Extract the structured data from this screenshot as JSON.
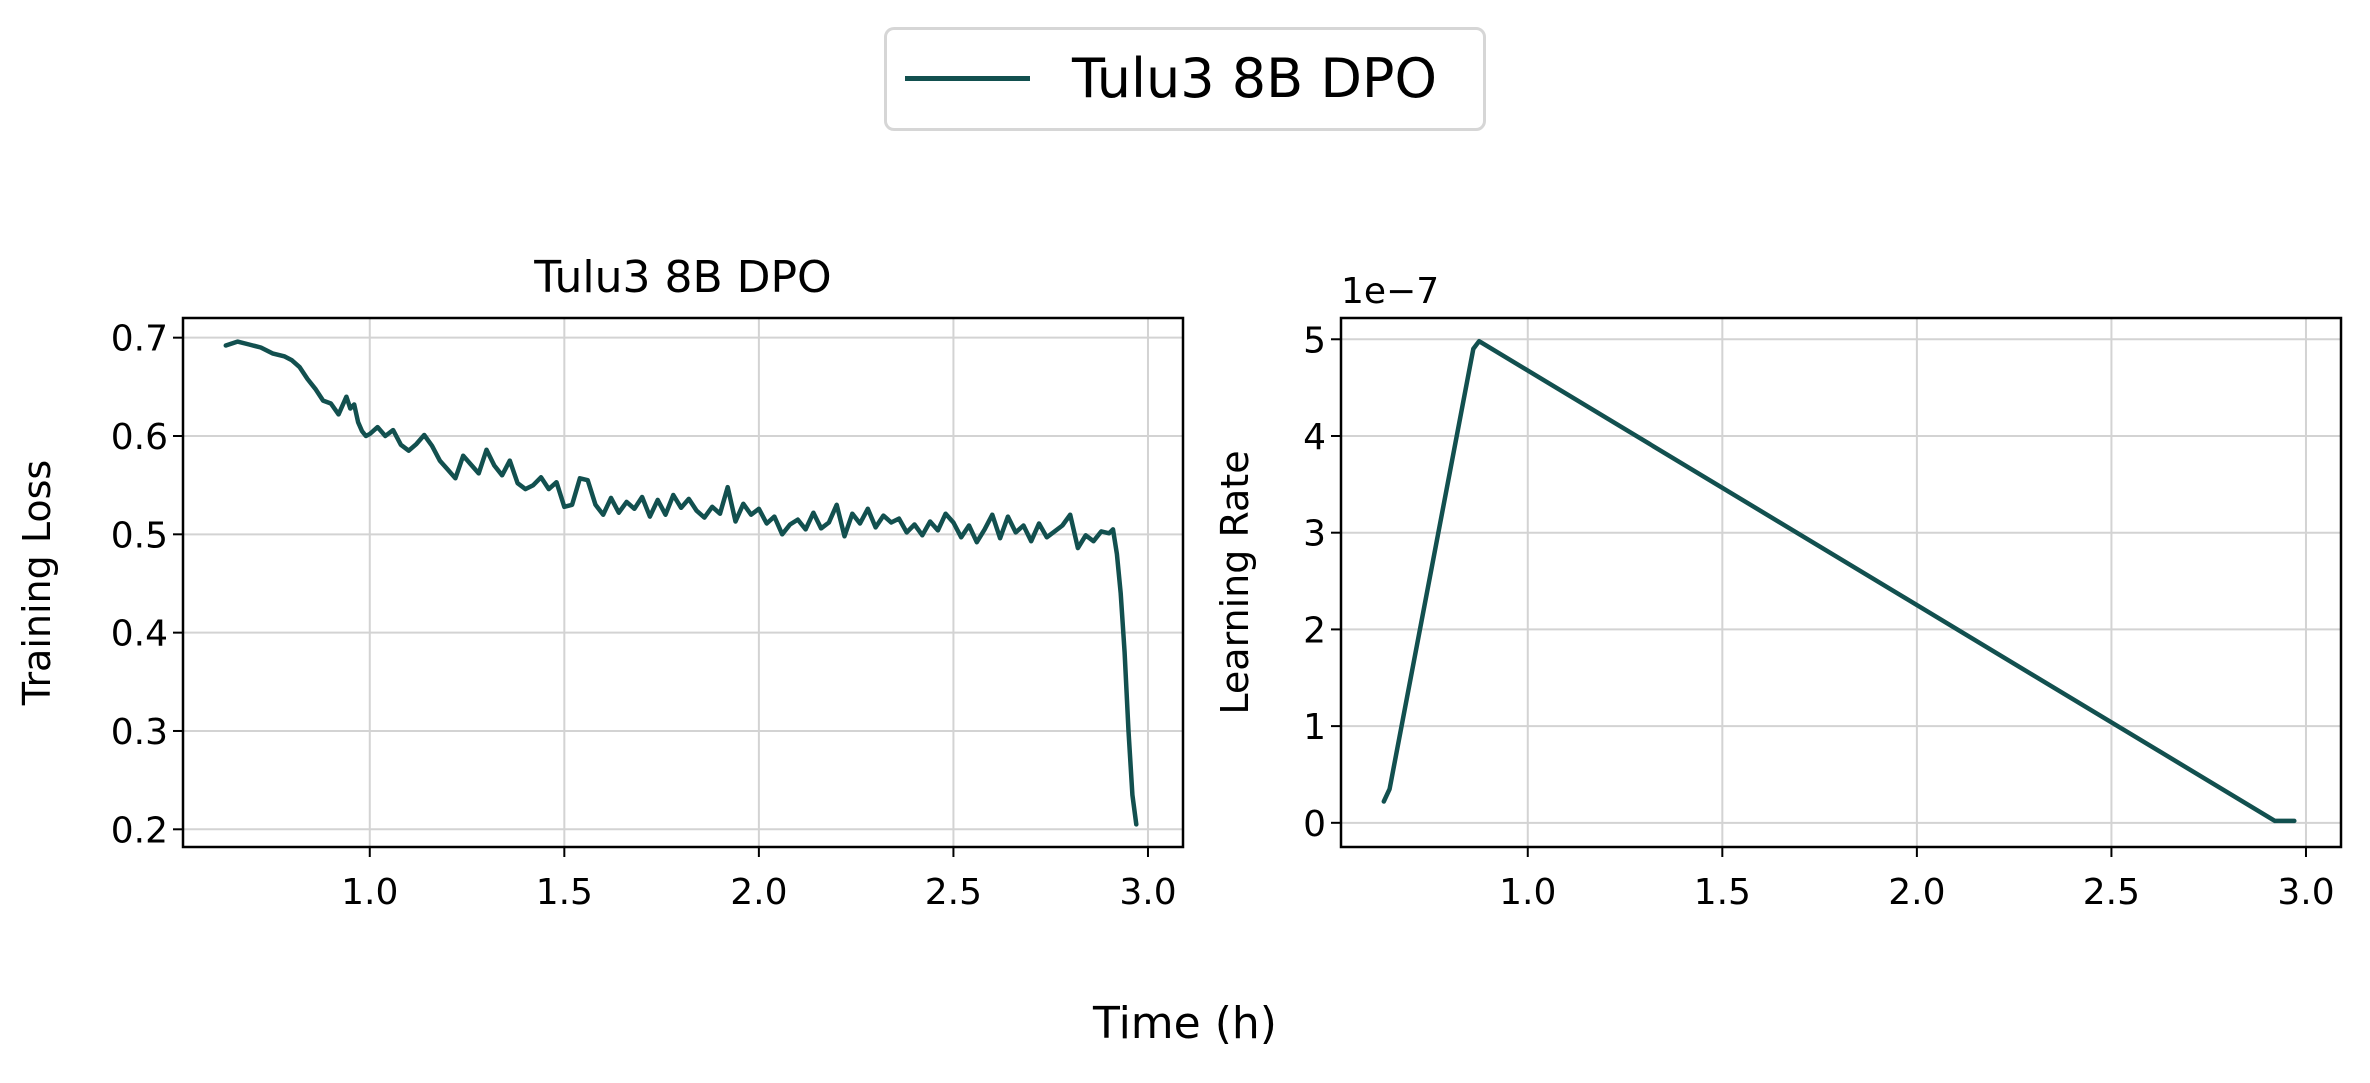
{
  "legend": {
    "label": "Tulu3 8B DPO",
    "color": "#12504f"
  },
  "figure": {
    "xlabel": "Time (h)"
  },
  "chart_data": [
    {
      "type": "line",
      "title": "Tulu3 8B DPO",
      "xlabel": "",
      "ylabel": "Training Loss",
      "xlim": [
        0.52,
        3.09
      ],
      "ylim": [
        0.182,
        0.72
      ],
      "xticks": [
        1.0,
        1.5,
        2.0,
        2.5,
        3.0
      ],
      "xtick_labels": [
        "1.0",
        "1.5",
        "2.0",
        "2.5",
        "3.0"
      ],
      "yticks": [
        0.2,
        0.3,
        0.4,
        0.5,
        0.6,
        0.7
      ],
      "ytick_labels": [
        "0.2",
        "0.3",
        "0.4",
        "0.5",
        "0.6",
        "0.7"
      ],
      "grid": true,
      "color": "#12504f",
      "series": [
        {
          "x": [
            0.63,
            0.66,
            0.69,
            0.72,
            0.75,
            0.78,
            0.8,
            0.82,
            0.84,
            0.86,
            0.88,
            0.9,
            0.92,
            0.94,
            0.95,
            0.96,
            0.97,
            0.98,
            0.99,
            1.0,
            1.02,
            1.04,
            1.06,
            1.08,
            1.1,
            1.12,
            1.14,
            1.16,
            1.18,
            1.2,
            1.22,
            1.24,
            1.26,
            1.28,
            1.3,
            1.32,
            1.34,
            1.36,
            1.38,
            1.4,
            1.42,
            1.44,
            1.46,
            1.48,
            1.5,
            1.52,
            1.54,
            1.56,
            1.58,
            1.6,
            1.62,
            1.64,
            1.66,
            1.68,
            1.7,
            1.72,
            1.74,
            1.76,
            1.78,
            1.8,
            1.82,
            1.84,
            1.86,
            1.88,
            1.9,
            1.92,
            1.94,
            1.96,
            1.98,
            2.0,
            2.02,
            2.04,
            2.06,
            2.08,
            2.1,
            2.12,
            2.14,
            2.16,
            2.18,
            2.2,
            2.22,
            2.24,
            2.26,
            2.28,
            2.3,
            2.32,
            2.34,
            2.36,
            2.38,
            2.4,
            2.42,
            2.44,
            2.46,
            2.48,
            2.5,
            2.52,
            2.54,
            2.56,
            2.58,
            2.6,
            2.62,
            2.64,
            2.66,
            2.68,
            2.7,
            2.72,
            2.74,
            2.76,
            2.78,
            2.8,
            2.82,
            2.84,
            2.86,
            2.88,
            2.9,
            2.91,
            2.92,
            2.93,
            2.94,
            2.95,
            2.96,
            2.97
          ],
          "y": [
            0.692,
            0.696,
            0.693,
            0.69,
            0.684,
            0.681,
            0.677,
            0.67,
            0.658,
            0.648,
            0.636,
            0.633,
            0.622,
            0.64,
            0.628,
            0.632,
            0.614,
            0.605,
            0.6,
            0.602,
            0.609,
            0.6,
            0.606,
            0.591,
            0.585,
            0.592,
            0.601,
            0.59,
            0.575,
            0.566,
            0.557,
            0.58,
            0.571,
            0.562,
            0.586,
            0.57,
            0.56,
            0.575,
            0.552,
            0.546,
            0.55,
            0.558,
            0.546,
            0.553,
            0.528,
            0.53,
            0.557,
            0.555,
            0.53,
            0.52,
            0.537,
            0.522,
            0.533,
            0.526,
            0.538,
            0.518,
            0.535,
            0.52,
            0.54,
            0.527,
            0.536,
            0.524,
            0.517,
            0.528,
            0.521,
            0.548,
            0.513,
            0.531,
            0.52,
            0.526,
            0.511,
            0.518,
            0.5,
            0.51,
            0.515,
            0.505,
            0.522,
            0.506,
            0.512,
            0.53,
            0.498,
            0.521,
            0.511,
            0.526,
            0.507,
            0.519,
            0.512,
            0.516,
            0.502,
            0.51,
            0.499,
            0.513,
            0.504,
            0.521,
            0.512,
            0.497,
            0.509,
            0.492,
            0.505,
            0.52,
            0.496,
            0.518,
            0.502,
            0.509,
            0.493,
            0.511,
            0.497,
            0.503,
            0.509,
            0.52,
            0.486,
            0.499,
            0.493,
            0.503,
            0.501,
            0.505,
            0.48,
            0.44,
            0.38,
            0.3,
            0.235,
            0.205
          ]
        }
      ]
    },
    {
      "type": "line",
      "title": "",
      "xlabel": "",
      "ylabel": "Learning Rate",
      "offset_text": "1e−7",
      "xlim": [
        0.52,
        3.09
      ],
      "ylim": [
        -0.25,
        5.22
      ],
      "xticks": [
        1.0,
        1.5,
        2.0,
        2.5,
        3.0
      ],
      "xtick_labels": [
        "1.0",
        "1.5",
        "2.0",
        "2.5",
        "3.0"
      ],
      "yticks": [
        0,
        1,
        2,
        3,
        4,
        5
      ],
      "ytick_labels": [
        "0",
        "1",
        "2",
        "3",
        "4",
        "5"
      ],
      "grid": true,
      "color": "#12504f",
      "series": [
        {
          "x": [
            0.63,
            0.645,
            0.86,
            0.875,
            2.92,
            2.97
          ],
          "y": [
            0.22,
            0.35,
            4.9,
            4.98,
            0.02,
            0.02
          ]
        }
      ]
    }
  ]
}
